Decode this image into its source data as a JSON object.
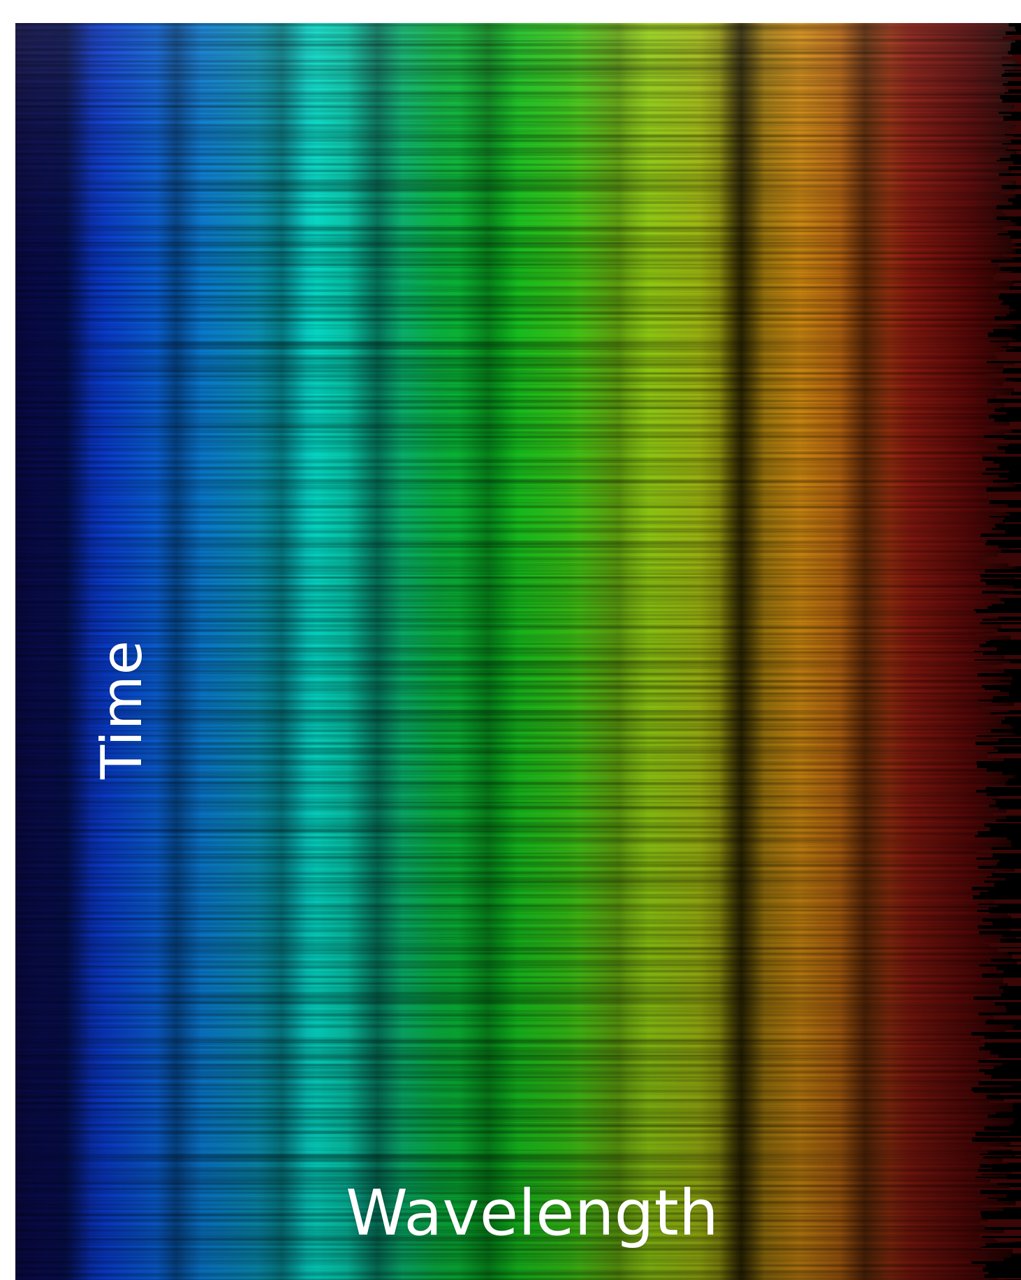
{
  "labels": {
    "vertical_axis": "Time",
    "horizontal_axis": "Wavelength"
  },
  "palette": {
    "background": "#ffffff",
    "violet_edge": "#0a0a4a",
    "blue": "#0a3fd8",
    "light_blue": "#0a86d8",
    "cyan": "#07e0c0",
    "green": "#0cb81a",
    "yellow_green": "#9fd614",
    "orange": "#e08a10",
    "red": "#8a1010",
    "dark_edge": "#1a0505",
    "text": "#ffffff"
  },
  "icons": {
    "image": "spectrogram-image"
  }
}
